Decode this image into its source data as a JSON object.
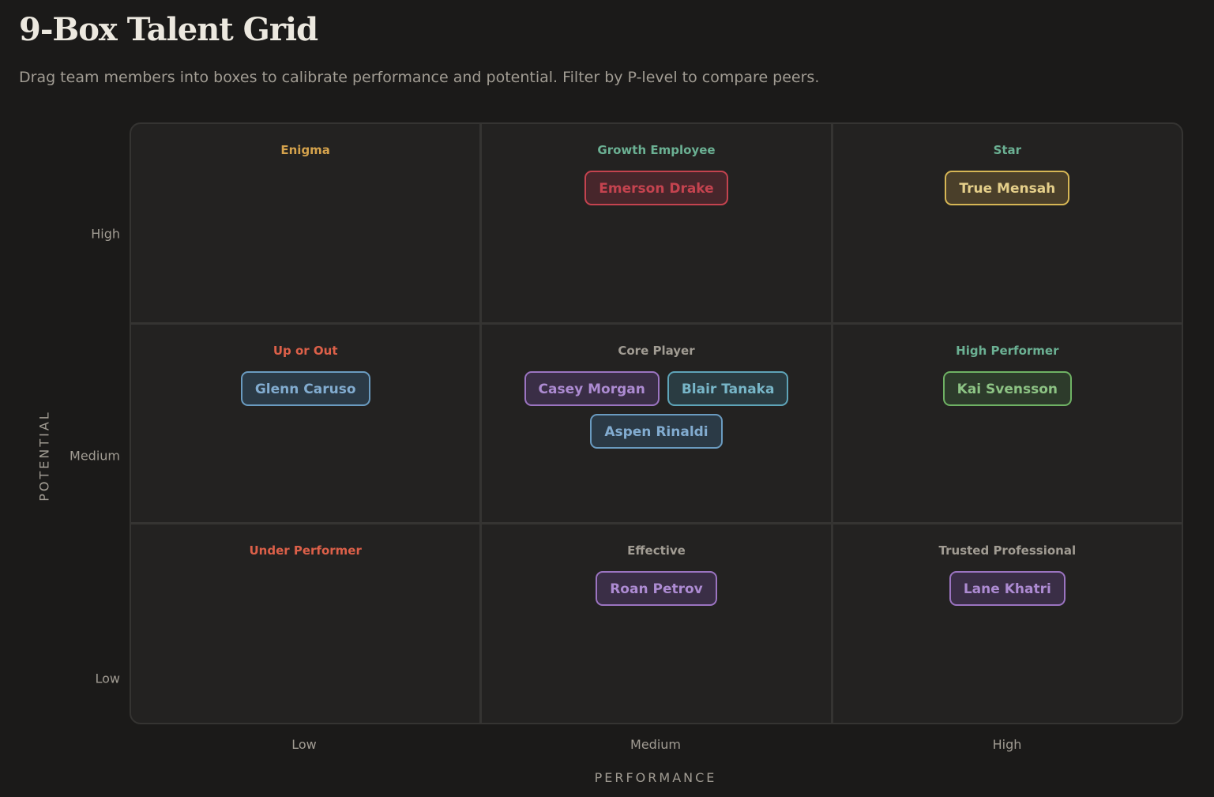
{
  "header": {
    "title": "9-Box Talent Grid",
    "subtitle": "Drag team members into boxes to calibrate performance and potential. Filter by P-level to compare peers."
  },
  "axes": {
    "y_title": "POTENTIAL",
    "y_ticks": {
      "high": "High",
      "medium": "Medium",
      "low": "Low"
    },
    "x_title": "PERFORMANCE",
    "x_ticks": {
      "low": "Low",
      "medium": "Medium",
      "high": "High"
    }
  },
  "colors": {
    "enigma": "#d4a24c",
    "growth": "#6bb093",
    "star": "#6bb093",
    "up_or_out": "#dc6049",
    "core": "#a19c93",
    "high_performer": "#6bb093",
    "under_performer": "#dc6049",
    "effective": "#a19c93",
    "trusted": "#a19c93"
  },
  "grid": {
    "enigma": {
      "label": "Enigma",
      "members": []
    },
    "growth": {
      "label": "Growth Employee",
      "members": [
        {
          "name": "Emerson Drake",
          "color": "red"
        }
      ]
    },
    "star": {
      "label": "Star",
      "members": [
        {
          "name": "True Mensah",
          "color": "gold"
        }
      ]
    },
    "up_or_out": {
      "label": "Up or Out",
      "members": [
        {
          "name": "Glenn Caruso",
          "color": "blue"
        }
      ]
    },
    "core": {
      "label": "Core Player",
      "members": [
        {
          "name": "Casey Morgan",
          "color": "purple"
        },
        {
          "name": "Blair Tanaka",
          "color": "teal"
        },
        {
          "name": "Aspen Rinaldi",
          "color": "blue"
        }
      ]
    },
    "high_performer": {
      "label": "High Performer",
      "members": [
        {
          "name": "Kai Svensson",
          "color": "green"
        }
      ]
    },
    "under_performer": {
      "label": "Under Performer",
      "members": []
    },
    "effective": {
      "label": "Effective",
      "members": [
        {
          "name": "Roan Petrov",
          "color": "purple"
        }
      ]
    },
    "trusted": {
      "label": "Trusted Professional",
      "members": [
        {
          "name": "Lane Khatri",
          "color": "purple"
        }
      ]
    }
  }
}
